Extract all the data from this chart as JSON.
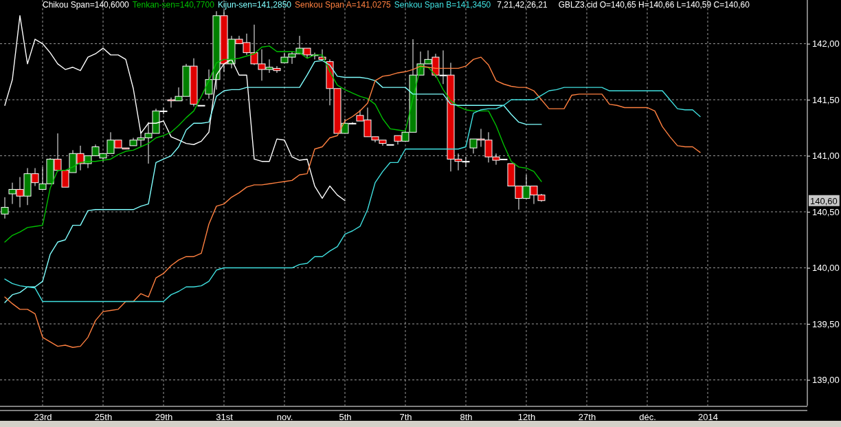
{
  "chart_data": {
    "type": "candlestick",
    "categories": [
      null,
      null,
      null,
      null,
      null,
      "23rd",
      null,
      null,
      null,
      null,
      null,
      null,
      null,
      "25th",
      null,
      null,
      null,
      null,
      null,
      null,
      null,
      "29th",
      null,
      null,
      null,
      null,
      null,
      null,
      null,
      "31st",
      null,
      null,
      null,
      null,
      null,
      null,
      null,
      "nov.",
      null,
      null,
      null,
      null,
      null,
      null,
      null,
      "5th",
      null,
      null,
      null,
      null,
      null,
      null,
      null,
      "7th",
      null,
      null,
      null,
      null,
      null,
      null,
      null,
      "8th",
      null,
      null,
      null,
      null,
      null,
      null,
      null,
      "12th",
      null,
      null,
      null,
      null,
      null,
      null,
      null,
      "27th",
      null,
      null,
      null,
      null,
      null,
      null,
      null,
      "déc.",
      null,
      null,
      null,
      null,
      null,
      null,
      null,
      "2014",
      null,
      null,
      null,
      null,
      null,
      null,
      null,
      null,
      null,
      null,
      null,
      null,
      null
    ],
    "ohlc": [
      [
        140.48,
        140.63,
        140.44,
        140.54
      ],
      [
        140.66,
        140.76,
        140.57,
        140.7
      ],
      [
        140.7,
        140.81,
        140.54,
        140.64
      ],
      [
        140.64,
        140.89,
        140.56,
        140.84
      ],
      [
        140.84,
        140.89,
        140.73,
        140.76
      ],
      [
        140.7,
        140.9,
        140.7,
        140.75
      ],
      [
        140.75,
        140.98,
        140.75,
        140.97
      ],
      [
        140.97,
        141.2,
        140.86,
        140.87
      ],
      [
        140.87,
        140.87,
        140.72,
        140.72
      ],
      [
        140.85,
        141.05,
        140.85,
        141.02
      ],
      [
        141.02,
        141.09,
        140.87,
        140.93
      ],
      [
        140.93,
        141.0,
        140.89,
        141.0
      ],
      [
        141.0,
        141.1,
        141.0,
        141.08
      ],
      [
        140.98,
        141.02,
        140.95,
        141.02
      ],
      [
        141.02,
        141.21,
        141.02,
        141.14
      ],
      [
        141.14,
        141.14,
        141.07,
        141.07
      ],
      [
        141.07,
        141.07,
        141.06,
        141.06
      ],
      [
        141.09,
        141.16,
        141.09,
        141.14
      ],
      [
        141.14,
        141.22,
        141.08,
        141.16
      ],
      [
        141.16,
        141.3,
        140.93,
        141.2
      ],
      [
        141.2,
        141.42,
        141.2,
        141.4
      ],
      [
        141.4,
        141.43,
        141.37,
        141.4
      ],
      [
        141.5,
        141.52,
        141.43,
        141.49
      ],
      [
        141.49,
        141.61,
        141.49,
        141.53
      ],
      [
        141.53,
        141.82,
        141.53,
        141.8
      ],
      [
        141.8,
        141.87,
        141.44,
        141.46
      ],
      [
        141.45,
        141.45,
        141.45,
        141.45
      ],
      [
        141.55,
        141.77,
        141.51,
        141.68
      ],
      [
        141.68,
        142.29,
        141.59,
        142.25
      ],
      [
        142.25,
        142.3,
        141.75,
        141.82
      ],
      [
        141.82,
        142.07,
        141.78,
        142.04
      ],
      [
        142.04,
        142.07,
        142.0,
        142.0
      ],
      [
        142.01,
        142.09,
        141.9,
        141.92
      ],
      [
        141.92,
        142.17,
        141.81,
        141.82
      ],
      [
        141.82,
        141.95,
        141.67,
        141.77
      ],
      [
        141.77,
        141.86,
        141.74,
        141.79
      ],
      [
        141.78,
        141.8,
        141.74,
        141.76
      ],
      [
        141.83,
        141.92,
        141.83,
        141.88
      ],
      [
        141.88,
        141.93,
        141.82,
        141.91
      ],
      [
        141.91,
        142.07,
        141.91,
        141.96
      ],
      [
        141.96,
        141.96,
        141.87,
        141.9
      ],
      [
        141.9,
        141.92,
        141.86,
        141.9
      ],
      [
        141.88,
        141.95,
        141.86,
        141.86
      ],
      [
        141.84,
        141.86,
        141.45,
        141.6
      ],
      [
        141.6,
        141.6,
        141.2,
        141.2
      ],
      [
        141.2,
        141.33,
        141.2,
        141.29
      ],
      [
        141.29,
        141.3,
        141.28,
        141.29
      ],
      [
        141.36,
        141.41,
        141.31,
        141.31
      ],
      [
        141.32,
        141.43,
        141.17,
        141.17
      ],
      [
        141.17,
        141.17,
        141.12,
        141.14
      ],
      [
        141.14,
        141.14,
        141.09,
        141.11
      ],
      [
        141.1,
        141.1,
        141.1,
        141.1
      ],
      [
        141.18,
        141.18,
        141.1,
        141.13
      ],
      [
        141.13,
        141.22,
        141.13,
        141.21
      ],
      [
        141.21,
        142.04,
        141.21,
        141.72
      ],
      [
        141.72,
        141.93,
        141.72,
        141.82
      ],
      [
        141.82,
        141.94,
        141.82,
        141.86
      ],
      [
        141.88,
        141.91,
        141.7,
        141.72
      ],
      [
        141.72,
        141.94,
        141.64,
        141.72
      ],
      [
        141.72,
        141.83,
        140.86,
        140.97
      ],
      [
        140.97,
        141.02,
        140.87,
        140.95
      ],
      [
        140.95,
        140.99,
        140.9,
        140.95
      ],
      [
        141.07,
        141.15,
        141.02,
        141.15
      ],
      [
        141.15,
        141.24,
        141.08,
        141.14
      ],
      [
        141.14,
        141.21,
        140.94,
        140.99
      ],
      [
        140.99,
        141.02,
        140.92,
        140.96
      ],
      [
        140.97,
        140.97,
        140.97,
        140.97
      ],
      [
        140.93,
        140.93,
        140.73,
        140.73
      ],
      [
        140.73,
        140.73,
        140.52,
        140.62
      ],
      [
        140.62,
        140.83,
        140.62,
        140.73
      ],
      [
        140.73,
        140.73,
        140.57,
        140.65
      ],
      [
        140.65,
        140.66,
        140.59,
        140.6
      ],
      null,
      null,
      null,
      null,
      null,
      null,
      null,
      null,
      null,
      null,
      null,
      null,
      null,
      null,
      null,
      null,
      null,
      null,
      null,
      null,
      null,
      null,
      null,
      null,
      null,
      null,
      null,
      null,
      null,
      null,
      null,
      null,
      null,
      null,
      null
    ],
    "colors": [
      "#008000",
      "#008000",
      "#e00000",
      "#008000",
      "#e00000",
      "#008000",
      "#008000",
      "#e00000",
      "#e00000",
      "#008000",
      "#e00000",
      "#008000",
      "#008000",
      "#008000",
      "#008000",
      "#e00000",
      "#e00000",
      "#008000",
      "#008000",
      "#008000",
      "#008000",
      "#ffffff",
      "#e00000",
      "#008000",
      "#008000",
      "#e00000",
      "#ffffff",
      "#008000",
      "#008000",
      "#e00000",
      "#008000",
      "#e00000",
      "#e00000",
      "#e00000",
      "#e00000",
      "#008000",
      "#e00000",
      "#008000",
      "#008000",
      "#008000",
      "#e00000",
      "#ffffff",
      "#e00000",
      "#e00000",
      "#e00000",
      "#008000",
      "#ffffff",
      "#e00000",
      "#e00000",
      "#e00000",
      "#e00000",
      "#ffffff",
      "#e00000",
      "#008000",
      "#008000",
      "#008000",
      "#008000",
      "#e00000",
      "#ffffff",
      "#e00000",
      "#e00000",
      "#ffffff",
      "#008000",
      "#e00000",
      "#e00000",
      "#e00000",
      "#ffffff",
      "#e00000",
      "#e00000",
      "#008000",
      "#e00000",
      "#e00000",
      null,
      null,
      null,
      null,
      null,
      null,
      null,
      null,
      null,
      null,
      null,
      null,
      null,
      null,
      null,
      null,
      null,
      null,
      null,
      null,
      null,
      null,
      null,
      null,
      null,
      null,
      null,
      null,
      null,
      null,
      null,
      null,
      null,
      null,
      null
    ],
    "series": [
      {
        "type": "line",
        "name": "Chikou Span=140,6000",
        "color": "#ffffff",
        "values": [
          141.45,
          141.68,
          142.25,
          141.82,
          142.04,
          142.0,
          141.92,
          141.82,
          141.77,
          141.79,
          141.76,
          141.88,
          141.91,
          141.96,
          141.9,
          141.9,
          141.86,
          141.6,
          141.2,
          141.29,
          141.29,
          141.31,
          141.17,
          141.14,
          141.11,
          141.1,
          141.13,
          141.21,
          141.72,
          141.82,
          141.86,
          141.72,
          141.72,
          140.97,
          140.95,
          140.95,
          141.15,
          141.14,
          140.99,
          140.96,
          140.97,
          140.73,
          140.62,
          140.73,
          140.65,
          140.6,
          null,
          null,
          null,
          null,
          null,
          null,
          null,
          null,
          null,
          null,
          null,
          null,
          null,
          null,
          null,
          null,
          null,
          null,
          null,
          null,
          null,
          null,
          null,
          null,
          null,
          null,
          null,
          null,
          null,
          null,
          null,
          null,
          null,
          null,
          null,
          null,
          null,
          null,
          null,
          null,
          null,
          null,
          null,
          null,
          null,
          null,
          null,
          null,
          null,
          null,
          null,
          null,
          null,
          null,
          null,
          null,
          null,
          null,
          null,
          null,
          null
        ]
      },
      {
        "type": "line",
        "name": "Tenkan-sen=140,7700",
        "color": "#00c000",
        "values": [
          140.23,
          140.29,
          140.32,
          140.36,
          140.37,
          140.38,
          140.71,
          140.87,
          140.87,
          140.9,
          140.94,
          140.95,
          140.95,
          140.96,
          140.97,
          141.01,
          141.04,
          141.05,
          141.08,
          141.11,
          141.16,
          141.18,
          141.21,
          141.27,
          141.34,
          141.4,
          141.53,
          141.67,
          141.83,
          141.86,
          141.86,
          141.87,
          141.89,
          141.91,
          141.97,
          141.98,
          141.93,
          141.93,
          141.93,
          141.92,
          141.87,
          141.9,
          141.9,
          141.75,
          141.63,
          141.59,
          141.56,
          141.53,
          141.51,
          141.46,
          141.33,
          141.24,
          141.23,
          141.22,
          141.51,
          141.79,
          141.79,
          141.72,
          141.59,
          141.49,
          141.44,
          141.41,
          141.4,
          141.4,
          141.4,
          141.27,
          141.1,
          140.95,
          140.9,
          140.89,
          140.86,
          140.77,
          null,
          null,
          null,
          null,
          null,
          null,
          null,
          null,
          null,
          null,
          null,
          null,
          null,
          null,
          null,
          null,
          null,
          null,
          null,
          null,
          null,
          null,
          null,
          null,
          null,
          null,
          null,
          null,
          null,
          null,
          null,
          null,
          null,
          null,
          null
        ]
      },
      {
        "type": "line",
        "name": "Kijun-sen=141,2850",
        "color": "#80ffff",
        "values": [
          139.69,
          139.76,
          139.78,
          139.83,
          139.83,
          139.88,
          140.12,
          140.23,
          140.25,
          140.38,
          140.38,
          140.51,
          140.52,
          140.52,
          140.52,
          140.52,
          140.52,
          140.52,
          140.55,
          140.57,
          140.94,
          140.97,
          141.0,
          141.08,
          141.23,
          141.29,
          141.29,
          141.3,
          141.53,
          141.58,
          141.59,
          141.59,
          141.61,
          141.61,
          141.61,
          141.61,
          141.61,
          141.61,
          141.61,
          141.61,
          141.72,
          141.84,
          141.85,
          141.81,
          141.71,
          141.7,
          141.7,
          141.7,
          141.69,
          141.67,
          141.61,
          141.61,
          141.61,
          141.61,
          141.55,
          141.55,
          141.55,
          141.55,
          141.55,
          141.46,
          141.45,
          141.45,
          141.45,
          141.45,
          141.45,
          141.45,
          141.45,
          141.37,
          141.3,
          141.28,
          141.28,
          141.28,
          null,
          null,
          null,
          null,
          null,
          null,
          null,
          null,
          null,
          null,
          null,
          null,
          null,
          null,
          null,
          null,
          null,
          null,
          null,
          null,
          null,
          null,
          null,
          null,
          null,
          null,
          null,
          null,
          null,
          null,
          null,
          null,
          null,
          null,
          null
        ]
      },
      {
        "type": "line",
        "name": "Senkou Span A=141,0275",
        "color": "#ff8040",
        "values": [
          139.74,
          139.68,
          139.63,
          139.63,
          139.59,
          139.38,
          139.34,
          139.3,
          139.31,
          139.29,
          139.3,
          139.38,
          139.53,
          139.61,
          139.62,
          139.63,
          139.7,
          139.7,
          139.77,
          139.74,
          139.91,
          139.95,
          140.02,
          140.07,
          140.1,
          140.1,
          140.13,
          140.39,
          140.55,
          140.57,
          140.63,
          140.67,
          140.72,
          140.74,
          140.74,
          140.75,
          140.76,
          140.77,
          140.78,
          140.83,
          140.84,
          141.06,
          141.08,
          141.16,
          141.18,
          141.31,
          141.35,
          141.4,
          141.47,
          141.67,
          141.71,
          141.72,
          141.74,
          141.75,
          141.77,
          141.8,
          141.79,
          141.78,
          141.78,
          141.78,
          141.78,
          141.8,
          141.86,
          141.88,
          141.81,
          141.67,
          141.64,
          141.62,
          141.61,
          141.61,
          141.58,
          141.5,
          141.42,
          141.42,
          141.42,
          141.54,
          141.55,
          141.55,
          141.55,
          141.55,
          141.46,
          141.45,
          141.43,
          141.43,
          141.43,
          141.43,
          141.4,
          141.26,
          141.17,
          141.09,
          141.08,
          141.08,
          141.03,
          null,
          null,
          null,
          null,
          null,
          null,
          null,
          null,
          null,
          null,
          null,
          null,
          null,
          null
        ]
      },
      {
        "type": "line",
        "name": "Senkou Span B=141,3450",
        "color": "#40e0e0",
        "values": [
          139.9,
          139.86,
          139.84,
          139.83,
          139.82,
          139.7,
          139.7,
          139.7,
          139.7,
          139.7,
          139.7,
          139.7,
          139.7,
          139.7,
          139.7,
          139.7,
          139.7,
          139.7,
          139.7,
          139.7,
          139.7,
          139.7,
          139.76,
          139.79,
          139.83,
          139.83,
          139.84,
          139.88,
          139.98,
          140.0,
          140.0,
          140.0,
          140.0,
          140.0,
          140.0,
          140.0,
          140.0,
          140.0,
          140.0,
          140.03,
          140.04,
          140.1,
          140.1,
          140.15,
          140.19,
          140.3,
          140.33,
          140.37,
          140.52,
          140.76,
          140.86,
          140.94,
          140.94,
          141.06,
          141.06,
          141.06,
          141.06,
          141.06,
          141.06,
          141.06,
          141.06,
          141.08,
          141.38,
          141.41,
          141.42,
          141.42,
          141.45,
          141.5,
          141.5,
          141.5,
          141.5,
          141.54,
          141.58,
          141.59,
          141.61,
          141.61,
          141.61,
          141.61,
          141.61,
          141.61,
          141.58,
          141.58,
          141.58,
          141.58,
          141.58,
          141.58,
          141.58,
          141.58,
          141.5,
          141.42,
          141.41,
          141.41,
          141.35,
          null,
          null,
          null,
          null,
          null,
          null,
          null,
          null,
          null,
          null,
          null,
          null,
          null,
          null
        ]
      }
    ],
    "ylim": [
      138.77,
      142.39
    ],
    "yticks": [
      {
        "value": 139,
        "label": "139,00"
      },
      {
        "value": 139.5,
        "label": "139,50"
      },
      {
        "value": 140,
        "label": "140,00"
      },
      {
        "value": 140.5,
        "label": "140,50"
      },
      {
        "value": 141,
        "label": "141,00"
      },
      {
        "value": 141.5,
        "label": "141,50"
      },
      {
        "value": 142,
        "label": "142,00"
      }
    ],
    "grid": true,
    "legend": "top",
    "annotations": [
      "7,21,42,26,21",
      "GBLZ3.cid O=140,65 H=140,66 L=140,59 C=140,60",
      "140,60"
    ]
  }
}
